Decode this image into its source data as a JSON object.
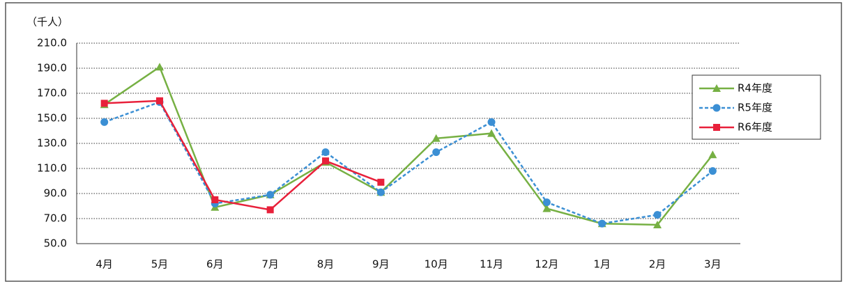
{
  "chart_data": {
    "type": "line",
    "y_unit_label": "（千人）",
    "categories": [
      "4月",
      "5月",
      "6月",
      "7月",
      "8月",
      "9月",
      "10月",
      "11月",
      "12月",
      "1月",
      "2月",
      "3月"
    ],
    "series": [
      {
        "name": "R4年度",
        "color": "#76b043",
        "marker": "triangle",
        "dash": false,
        "values": [
          161,
          191,
          79,
          89,
          115,
          91,
          134,
          138,
          78,
          66,
          65,
          121
        ]
      },
      {
        "name": "R5年度",
        "color": "#3b8fd4",
        "marker": "circle",
        "dash": true,
        "values": [
          147,
          163,
          82,
          89,
          123,
          91,
          123,
          147,
          83,
          66,
          73,
          108
        ]
      },
      {
        "name": "R6年度",
        "color": "#e8203a",
        "marker": "square",
        "dash": false,
        "values": [
          162,
          164,
          85,
          77,
          116,
          99,
          null,
          null,
          null,
          null,
          null,
          null
        ]
      }
    ],
    "ylim": [
      50,
      210
    ],
    "yticks": [
      {
        "value": 50,
        "label": "50.0"
      },
      {
        "value": 70,
        "label": "70.0"
      },
      {
        "value": 90,
        "label": "90.0"
      },
      {
        "value": 110,
        "label": "110.0"
      },
      {
        "value": 130,
        "label": "130.0"
      },
      {
        "value": 150,
        "label": "150.0"
      },
      {
        "value": 170,
        "label": "170.0"
      },
      {
        "value": 190,
        "label": "190.0"
      },
      {
        "value": 210,
        "label": "210.0"
      }
    ],
    "grid": true,
    "legend": "right"
  }
}
